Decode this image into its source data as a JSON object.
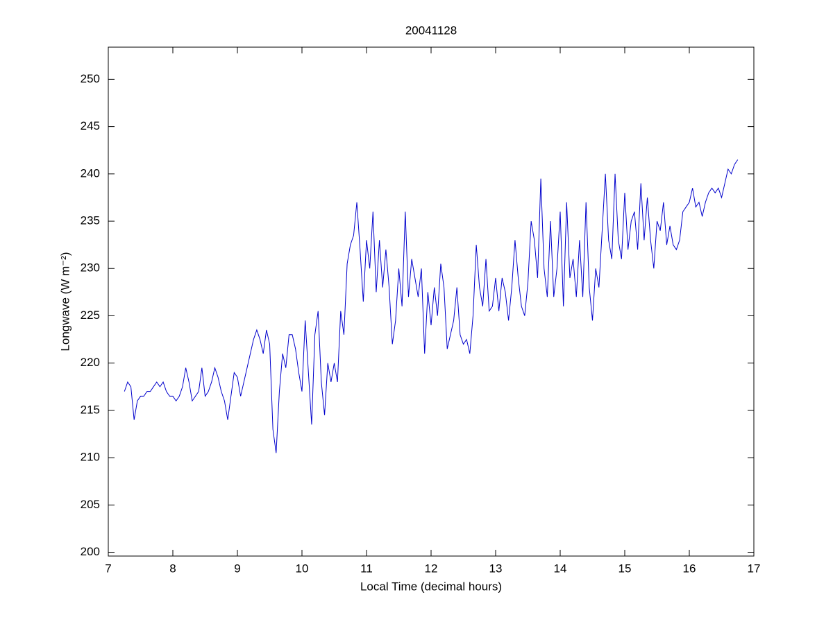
{
  "chart_data": {
    "type": "line",
    "title": "20041128",
    "x_label": "Local Time (decimal hours)",
    "y_label": "Longwave (W m⁻²)",
    "x": [
      7.25,
      7.3,
      7.35,
      7.4,
      7.45,
      7.5,
      7.55,
      7.6,
      7.65,
      7.7,
      7.75,
      7.8,
      7.85,
      7.9,
      7.95,
      8.0,
      8.05,
      8.1,
      8.15,
      8.2,
      8.25,
      8.3,
      8.35,
      8.4,
      8.45,
      8.5,
      8.55,
      8.6,
      8.65,
      8.7,
      8.75,
      8.8,
      8.85,
      8.9,
      8.95,
      9.0,
      9.05,
      9.1,
      9.15,
      9.2,
      9.25,
      9.3,
      9.35,
      9.4,
      9.45,
      9.5,
      9.55,
      9.6,
      9.65,
      9.7,
      9.75,
      9.8,
      9.85,
      9.9,
      9.95,
      10.0,
      10.05,
      10.1,
      10.15,
      10.2,
      10.25,
      10.3,
      10.35,
      10.4,
      10.45,
      10.5,
      10.55,
      10.6,
      10.65,
      10.7,
      10.75,
      10.8,
      10.85,
      10.9,
      10.95,
      11.0,
      11.05,
      11.1,
      11.15,
      11.2,
      11.25,
      11.3,
      11.35,
      11.4,
      11.45,
      11.5,
      11.55,
      11.6,
      11.65,
      11.7,
      11.75,
      11.8,
      11.85,
      11.9,
      11.95,
      12.0,
      12.05,
      12.1,
      12.15,
      12.2,
      12.25,
      12.3,
      12.35,
      12.4,
      12.45,
      12.5,
      12.55,
      12.6,
      12.65,
      12.7,
      12.75,
      12.8,
      12.85,
      12.9,
      12.95,
      13.0,
      13.05,
      13.1,
      13.15,
      13.2,
      13.25,
      13.3,
      13.35,
      13.4,
      13.45,
      13.5,
      13.55,
      13.6,
      13.65,
      13.7,
      13.75,
      13.8,
      13.85,
      13.9,
      13.95,
      14.0,
      14.05,
      14.1,
      14.15,
      14.2,
      14.25,
      14.3,
      14.35,
      14.4,
      14.45,
      14.5,
      14.55,
      14.6,
      14.65,
      14.7,
      14.75,
      14.8,
      14.85,
      14.9,
      14.95,
      15.0,
      15.05,
      15.1,
      15.15,
      15.2,
      15.25,
      15.3,
      15.35,
      15.4,
      15.45,
      15.5,
      15.55,
      15.6,
      15.65,
      15.7,
      15.75,
      15.8,
      15.85,
      15.9,
      15.95,
      16.0,
      16.05,
      16.1,
      16.15,
      16.2,
      16.25,
      16.3,
      16.35,
      16.4,
      16.45,
      16.5,
      16.55,
      16.6,
      16.65,
      16.7,
      16.75
    ],
    "series": [
      {
        "color": "#0000cc",
        "values": [
          217,
          218,
          217.5,
          214,
          216,
          216.5,
          216.5,
          217,
          217,
          217.5,
          218,
          217.5,
          218,
          217,
          216.5,
          216.5,
          216,
          216.5,
          217.5,
          219.5,
          218,
          216,
          216.5,
          217,
          219.5,
          216.5,
          217,
          218,
          219.5,
          218.5,
          217,
          216,
          214,
          216.5,
          219,
          218.5,
          216.5,
          218,
          219.5,
          221,
          222.5,
          223.5,
          222.5,
          221,
          223.5,
          222,
          213,
          210.5,
          217,
          221,
          219.5,
          223,
          223,
          221.5,
          219,
          217,
          224.5,
          219,
          213.5,
          223,
          225.5,
          218,
          214.5,
          220,
          218,
          220,
          218,
          225.5,
          223,
          230.5,
          232.5,
          233.5,
          237,
          232,
          226.5,
          233,
          230,
          236,
          227.5,
          233,
          228,
          232,
          228,
          222,
          224.5,
          230,
          226,
          236,
          227,
          231,
          229,
          227,
          230,
          221,
          227.5,
          224,
          228,
          225,
          230.5,
          228,
          221.5,
          223,
          224.5,
          228,
          223,
          222,
          222.5,
          221,
          225,
          232.5,
          228,
          226,
          231,
          225.5,
          226,
          229,
          225.5,
          229,
          227.5,
          224.5,
          228,
          233,
          229,
          226,
          225,
          228.5,
          235,
          233,
          229,
          239.5,
          230,
          227,
          235,
          227,
          230,
          236,
          226,
          237,
          229,
          231,
          227,
          233,
          227,
          237,
          228,
          224.5,
          230,
          228,
          234,
          240,
          233,
          231,
          240,
          233,
          231,
          238,
          232,
          235,
          236,
          232,
          239,
          233,
          237.5,
          233,
          230,
          235,
          234,
          237,
          232.5,
          234.5,
          232.5,
          232,
          233,
          236,
          236.5,
          237,
          238.5,
          236.5,
          237,
          235.5,
          237,
          238,
          238.5,
          238,
          238.5,
          237.5,
          239,
          240.5,
          240,
          241,
          241.5
        ]
      }
    ],
    "xlim": [
      7,
      17
    ],
    "ylim": [
      199.6,
      253.4
    ],
    "xticks": [
      7,
      8,
      9,
      10,
      11,
      12,
      13,
      14,
      15,
      16,
      17
    ],
    "yticks": [
      200,
      205,
      210,
      215,
      220,
      225,
      230,
      235,
      240,
      245,
      250
    ]
  }
}
